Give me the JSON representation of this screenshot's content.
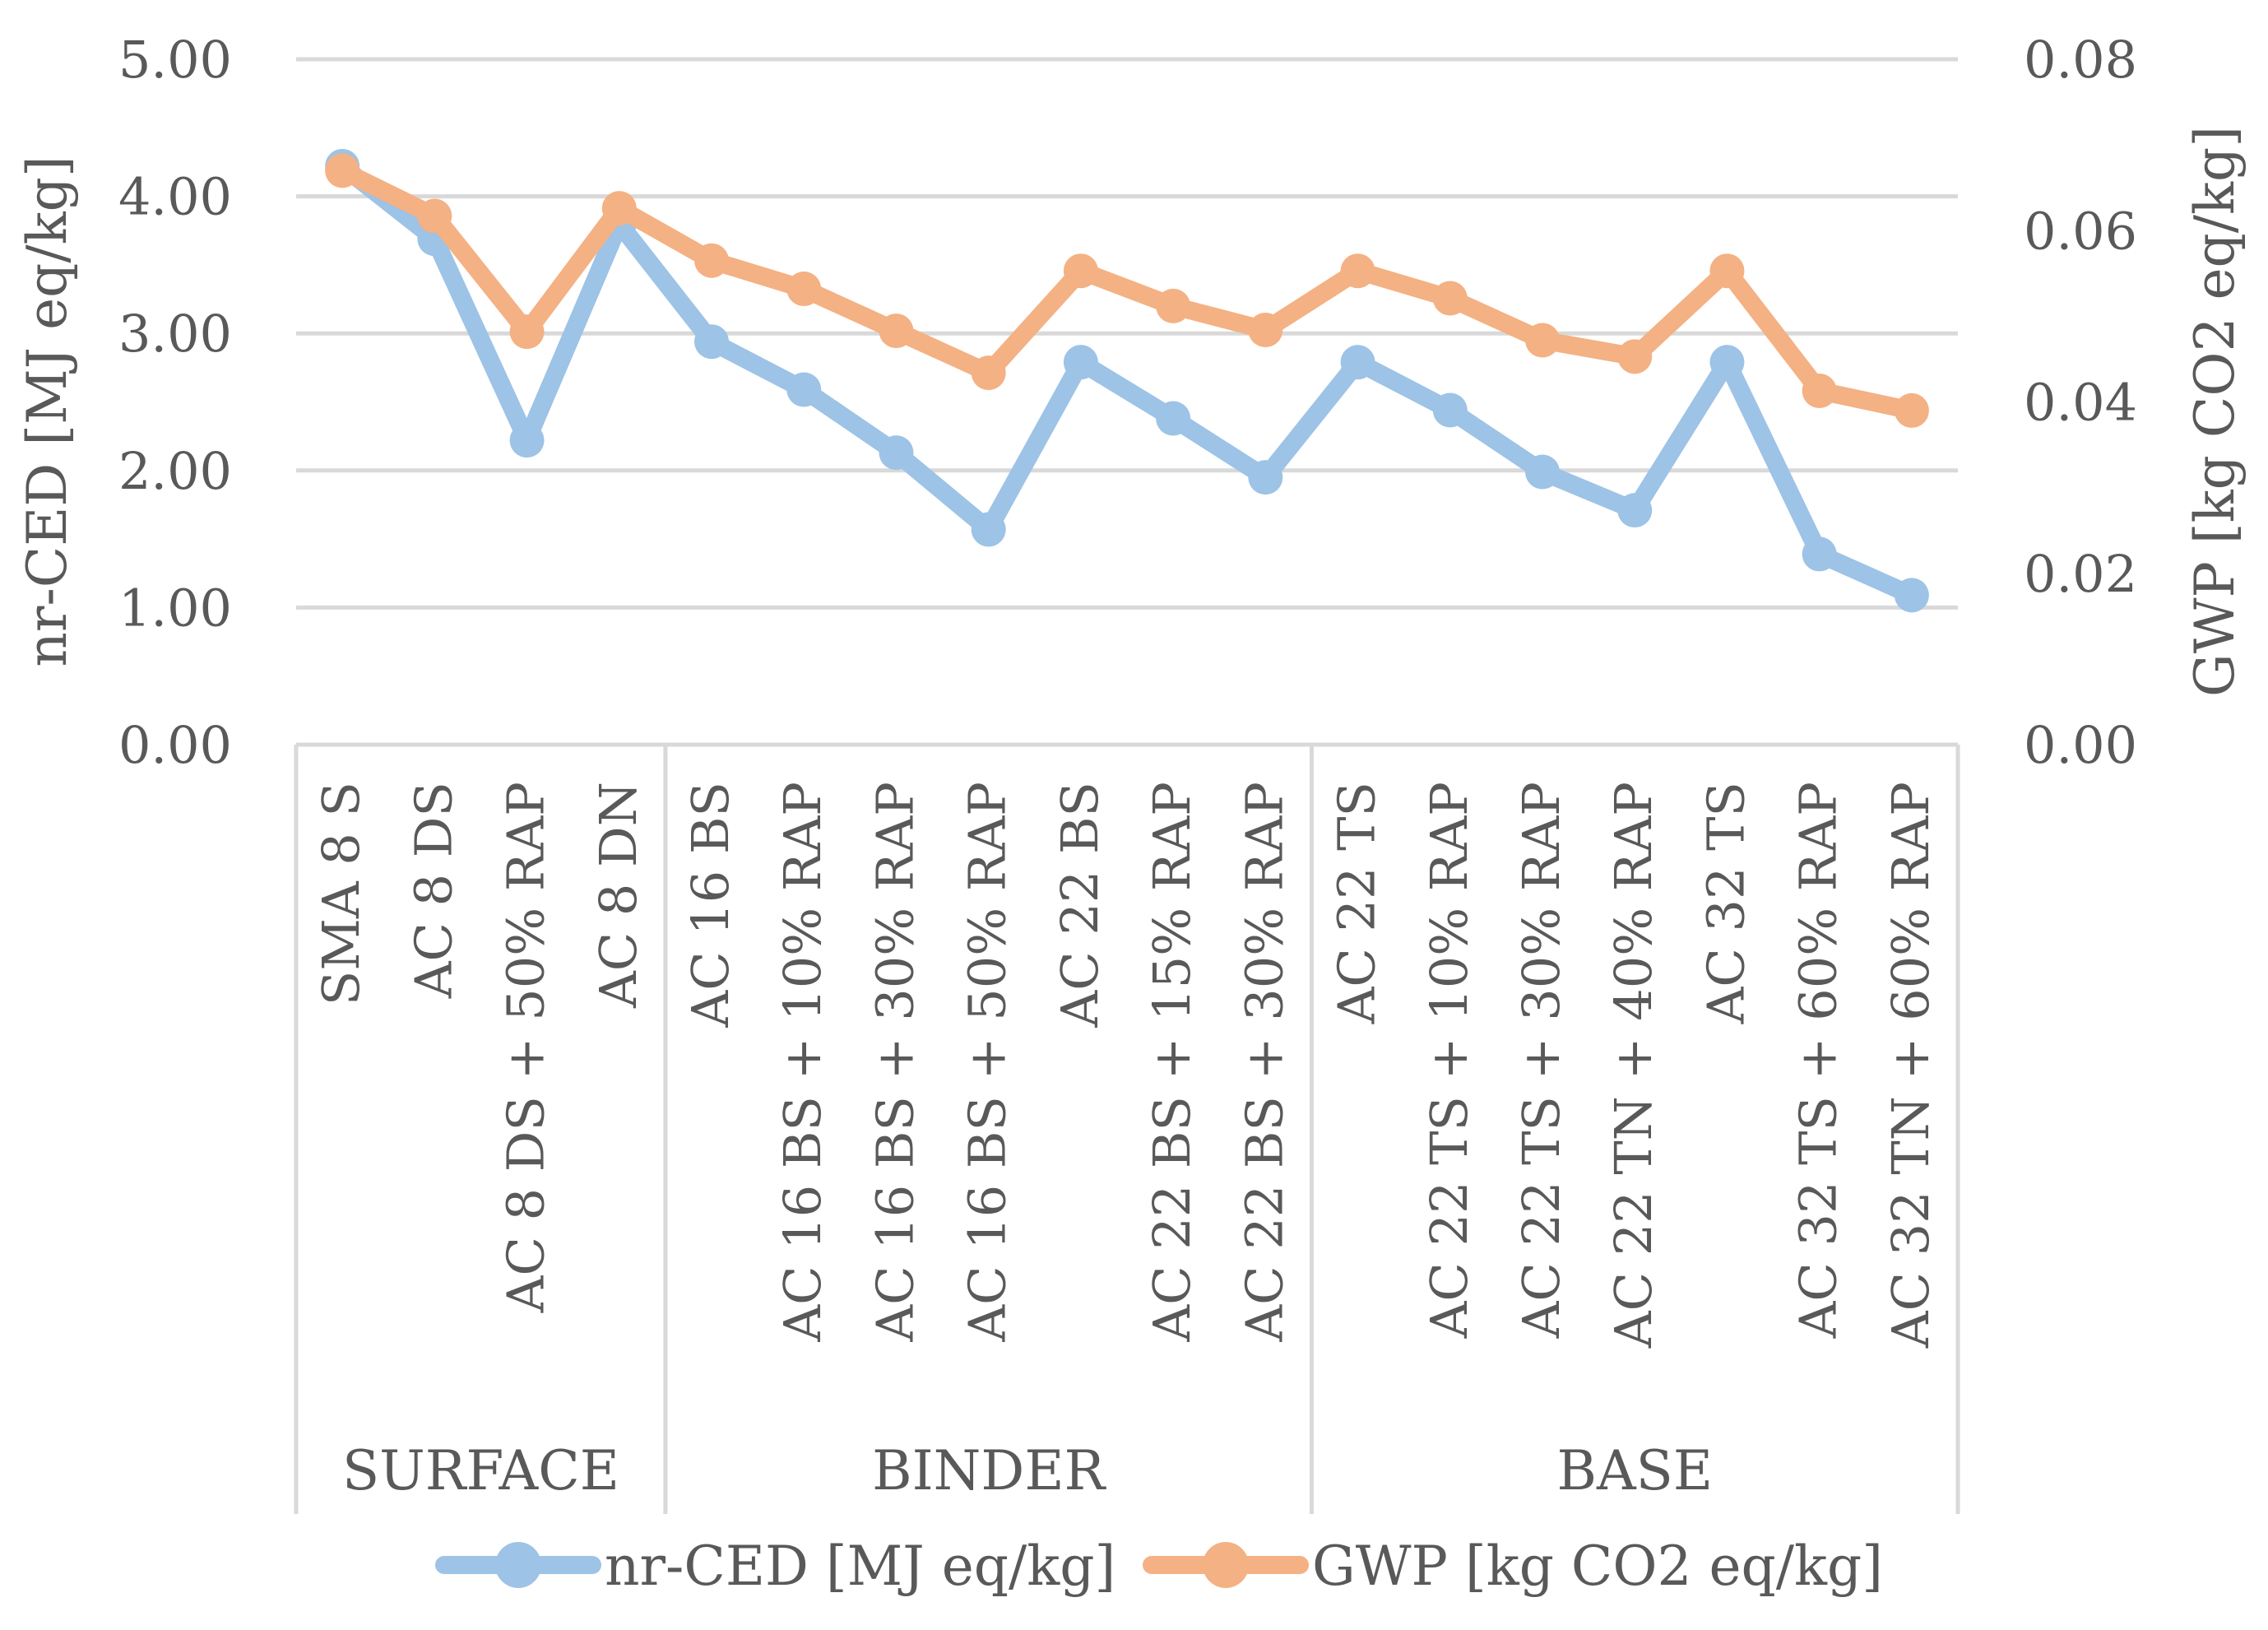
{
  "chart_data": {
    "type": "line",
    "y_left": {
      "label": "nr-CED [MJ eq/kg]",
      "ylim": [
        0,
        5
      ],
      "ticks": [
        "0.00",
        "1.00",
        "2.00",
        "3.00",
        "4.00",
        "5.00"
      ]
    },
    "y_right": {
      "label": "GWP [kg CO2 eq/kg]",
      "ylim": [
        0,
        0.08
      ],
      "ticks": [
        "0.00",
        "0.02",
        "0.04",
        "0.06",
        "0.08"
      ]
    },
    "grid": true,
    "categories": [
      "SMA 8 S",
      "AC 8 DS",
      "AC 8 DS + 50% RAP",
      "AC 8 DN",
      "AC 16 BS",
      "AC 16 BS + 10% RAP",
      "AC 16 BS + 30% RAP",
      "AC 16 BS + 50% RAP",
      "AC 22 BS",
      "AC 22 BS + 15% RAP",
      "AC 22 BS + 30% RAP",
      "AC 22 TS",
      "AC 22 TS + 10% RAP",
      "AC 22 TS + 30% RAP",
      "AC 22 TN + 40% RAP",
      "AC 32 TS",
      "AC 32 TS + 60% RAP",
      "AC 32 TN + 60% RAP"
    ],
    "groups": [
      {
        "name": "SURFACE",
        "count": 4
      },
      {
        "name": "BINDER",
        "count": 7
      },
      {
        "name": "BASE",
        "count": 7
      }
    ],
    "series": [
      {
        "name": "nr-CED [MJ eq/kg]",
        "axis": "left",
        "color": "#9DC3E6",
        "values": [
          4.22,
          3.69,
          2.22,
          3.8,
          2.94,
          2.59,
          2.13,
          1.57,
          2.79,
          2.38,
          1.95,
          2.79,
          2.44,
          1.99,
          1.71,
          2.79,
          1.39,
          1.09
        ]
      },
      {
        "name": "GWP [kg CO2 eq/kg]",
        "axis": "right",
        "color": "#F4B183",
        "values": [
          0.067,
          0.0617,
          0.0482,
          0.0626,
          0.0565,
          0.0532,
          0.0483,
          0.0434,
          0.0553,
          0.0512,
          0.0484,
          0.0553,
          0.0521,
          0.0472,
          0.0453,
          0.0553,
          0.0413,
          0.039
        ]
      }
    ],
    "legend": "bottom"
  }
}
